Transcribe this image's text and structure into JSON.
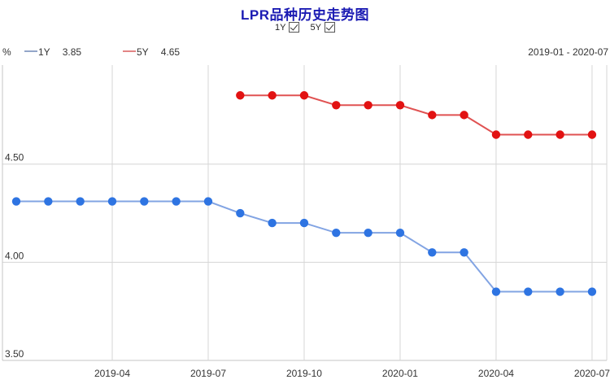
{
  "header": {
    "title": "LPR品种历史走势图",
    "toggles": [
      {
        "label": "1Y",
        "checked": true
      },
      {
        "label": "5Y",
        "checked": true
      }
    ]
  },
  "legend": {
    "unit": "%",
    "items": [
      {
        "label": "1Y",
        "value": "3.85"
      },
      {
        "label": "5Y",
        "value": "4.65"
      }
    ],
    "date_range": "2019-01 - 2020-07"
  },
  "chart_data": {
    "type": "line",
    "title": "LPR品种历史走势图",
    "ylabel": "%",
    "ylim": [
      3.5,
      5.0
    ],
    "grid": true,
    "legend_position": "top-left",
    "x": [
      "2019-01",
      "2019-02",
      "2019-03",
      "2019-04",
      "2019-05",
      "2019-06",
      "2019-07",
      "2019-08",
      "2019-09",
      "2019-10",
      "2019-11",
      "2019-12",
      "2020-01",
      "2020-02",
      "2020-03",
      "2020-04",
      "2020-05",
      "2020-06",
      "2020-07"
    ],
    "series": [
      {
        "name": "1Y",
        "latest": "3.85",
        "dot_color": "#2e74e2",
        "line_color": "#82a4e3",
        "values": [
          4.31,
          4.31,
          4.31,
          4.31,
          4.31,
          4.31,
          4.31,
          4.25,
          4.2,
          4.2,
          4.15,
          4.15,
          4.15,
          4.05,
          4.05,
          3.85,
          3.85,
          3.85,
          3.85
        ]
      },
      {
        "name": "5Y",
        "latest": "4.65",
        "dot_color": "#e21212",
        "line_color": "#e05252",
        "values": [
          null,
          null,
          null,
          null,
          null,
          null,
          null,
          4.85,
          4.85,
          4.85,
          4.8,
          4.8,
          4.8,
          4.75,
          4.75,
          4.65,
          4.65,
          4.65,
          4.65
        ]
      }
    ],
    "x_ticks": [
      "2019-04",
      "2019-07",
      "2019-10",
      "2020-01",
      "2020-04",
      "2020-07"
    ],
    "y_ticks": [
      {
        "label": "4.50",
        "value": 4.5
      },
      {
        "label": "4.00",
        "value": 4.0
      },
      {
        "label": "3.50",
        "value": 3.5
      }
    ]
  },
  "colors": {
    "title": "#1b1bb3",
    "axis_text": "#333333",
    "grid": "#d6d6d6",
    "axis_line": "#c4c4c4"
  }
}
